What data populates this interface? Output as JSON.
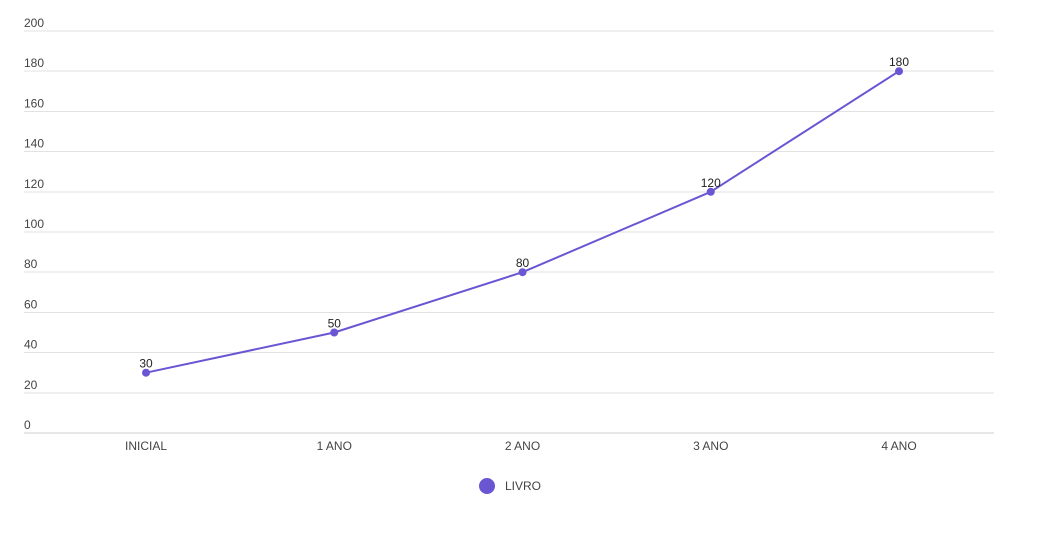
{
  "chart_data": {
    "type": "line",
    "title": "",
    "xlabel": "",
    "ylabel": "",
    "categories": [
      "INICIAL",
      "1 ANO",
      "2 ANO",
      "3 ANO",
      "4 ANO"
    ],
    "series": [
      {
        "name": "LIVRO",
        "values": [
          30,
          50,
          80,
          120,
          180
        ],
        "color": "#6a55d3"
      }
    ],
    "ylim": [
      0,
      200
    ],
    "yticks": [
      0,
      20,
      40,
      60,
      80,
      100,
      120,
      140,
      160,
      180,
      200
    ],
    "grid": true,
    "data_labels": true,
    "legend_position": "bottom"
  }
}
